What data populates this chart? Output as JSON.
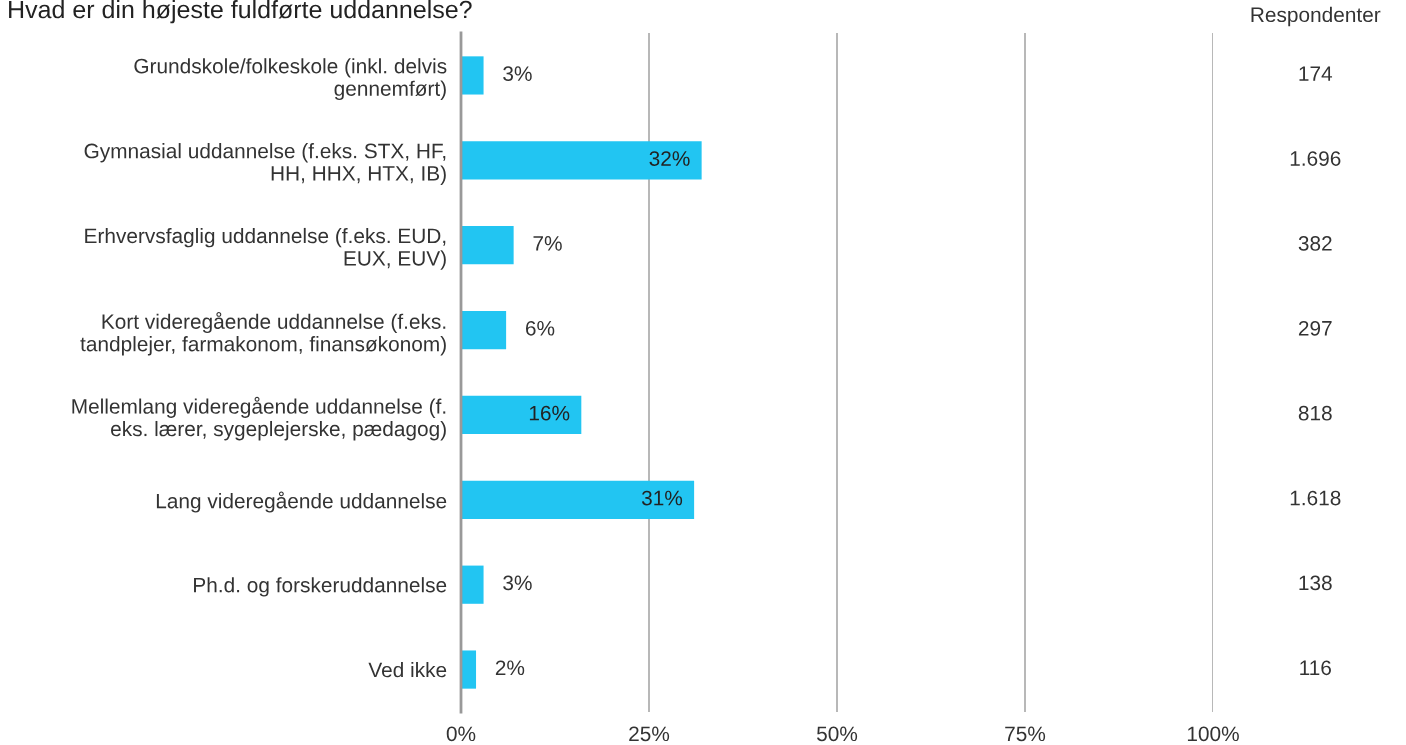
{
  "chart_data": {
    "type": "bar",
    "orientation": "horizontal",
    "title": "Hvad er din højeste fuldførte uddannelse?",
    "categories": [
      "Grundskole/folkeskole (inkl. delvis\ngennemført)",
      "Gymnasial uddannelse (f.eks. STX, HF,\nHH, HHX, HTX, IB)",
      "Erhvervsfaglig uddannelse (f.eks. EUD,\nEUX, EUV)",
      "Kort videregående uddannelse (f.eks.\ntandplejer, farmakonom, finansøkonom)",
      "Mellemlang videregående uddannelse (f.\neks. lærer, sygeplejerske, pædagog)",
      "Lang videregående uddannelse",
      "Ph.d. og forskeruddannelse",
      "Ved ikke"
    ],
    "values": [
      3,
      32,
      7,
      6,
      16,
      31,
      3,
      2
    ],
    "value_labels": [
      "3%",
      "32%",
      "7%",
      "6%",
      "16%",
      "31%",
      "3%",
      "2%"
    ],
    "color": "#22c5f2",
    "xlim": [
      0,
      100
    ],
    "xticks": [
      {
        "value": 0,
        "label": "0%"
      },
      {
        "value": 25,
        "label": "25%"
      },
      {
        "value": 50,
        "label": "50%"
      },
      {
        "value": 75,
        "label": "75%"
      },
      {
        "value": 100,
        "label": "100%"
      }
    ],
    "grid": "x",
    "legend": false,
    "annotations": [
      "Respondenter",
      "174",
      "1.696",
      "382",
      "297",
      "818",
      "1.618",
      "138",
      "116"
    ]
  }
}
